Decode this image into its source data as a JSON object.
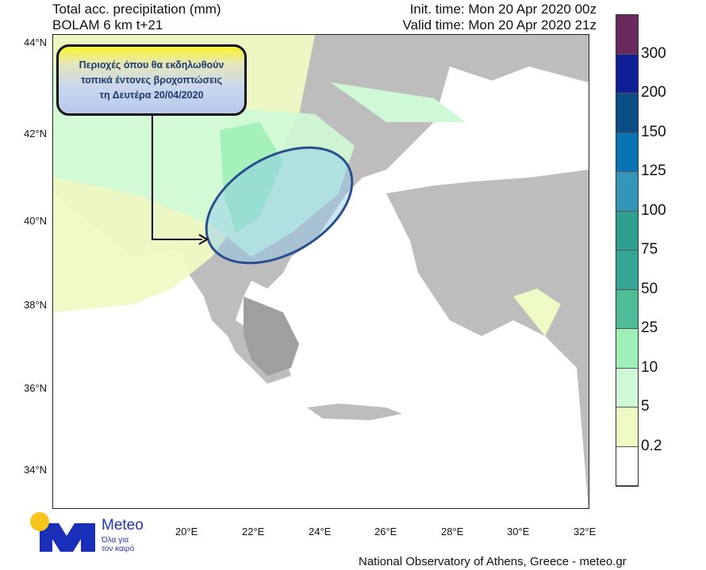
{
  "header": {
    "title_line1": "Total acc. precipitation (mm)",
    "title_line2": "BOLAM 6 km t+21",
    "init_time": "Init. time: Mon 20 Apr 2020 00z",
    "valid_time": "Valid time: Mon 20 Apr 2020 21z"
  },
  "map": {
    "lat_ticks": [
      "44°N",
      "42°N",
      "40°N",
      "38°N",
      "36°N",
      "34°N"
    ],
    "lon_ticks": [
      "20°E",
      "22°E",
      "24°E",
      "26°E",
      "28°E",
      "30°E",
      "32°E"
    ],
    "callout": {
      "line1": "Περιοχές όπου θα εκδηλωθούν",
      "line2": "τοπικά έντονες βροχοπτώσεις",
      "line3": "τη Δευτέρα 20/04/2020"
    }
  },
  "colorbar": {
    "labels": [
      "300",
      "200",
      "150",
      "125",
      "100",
      "75",
      "50",
      "25",
      "10",
      "5",
      "0.2"
    ],
    "colors": [
      "#6b2a5e",
      "#0f1f96",
      "#0b4f86",
      "#0a73b5",
      "#3395b8",
      "#2f9f8f",
      "#35a595",
      "#4fbc98",
      "#9ef0b8",
      "#cff9d6",
      "#eefac4",
      "#ffffff"
    ]
  },
  "footer": {
    "credit": "National Observatory of Athens, Greece - meteo.gr",
    "logo_name": "Meteo",
    "logo_tagline1": "Όλα για",
    "logo_tagline2": "τον καιρό"
  }
}
